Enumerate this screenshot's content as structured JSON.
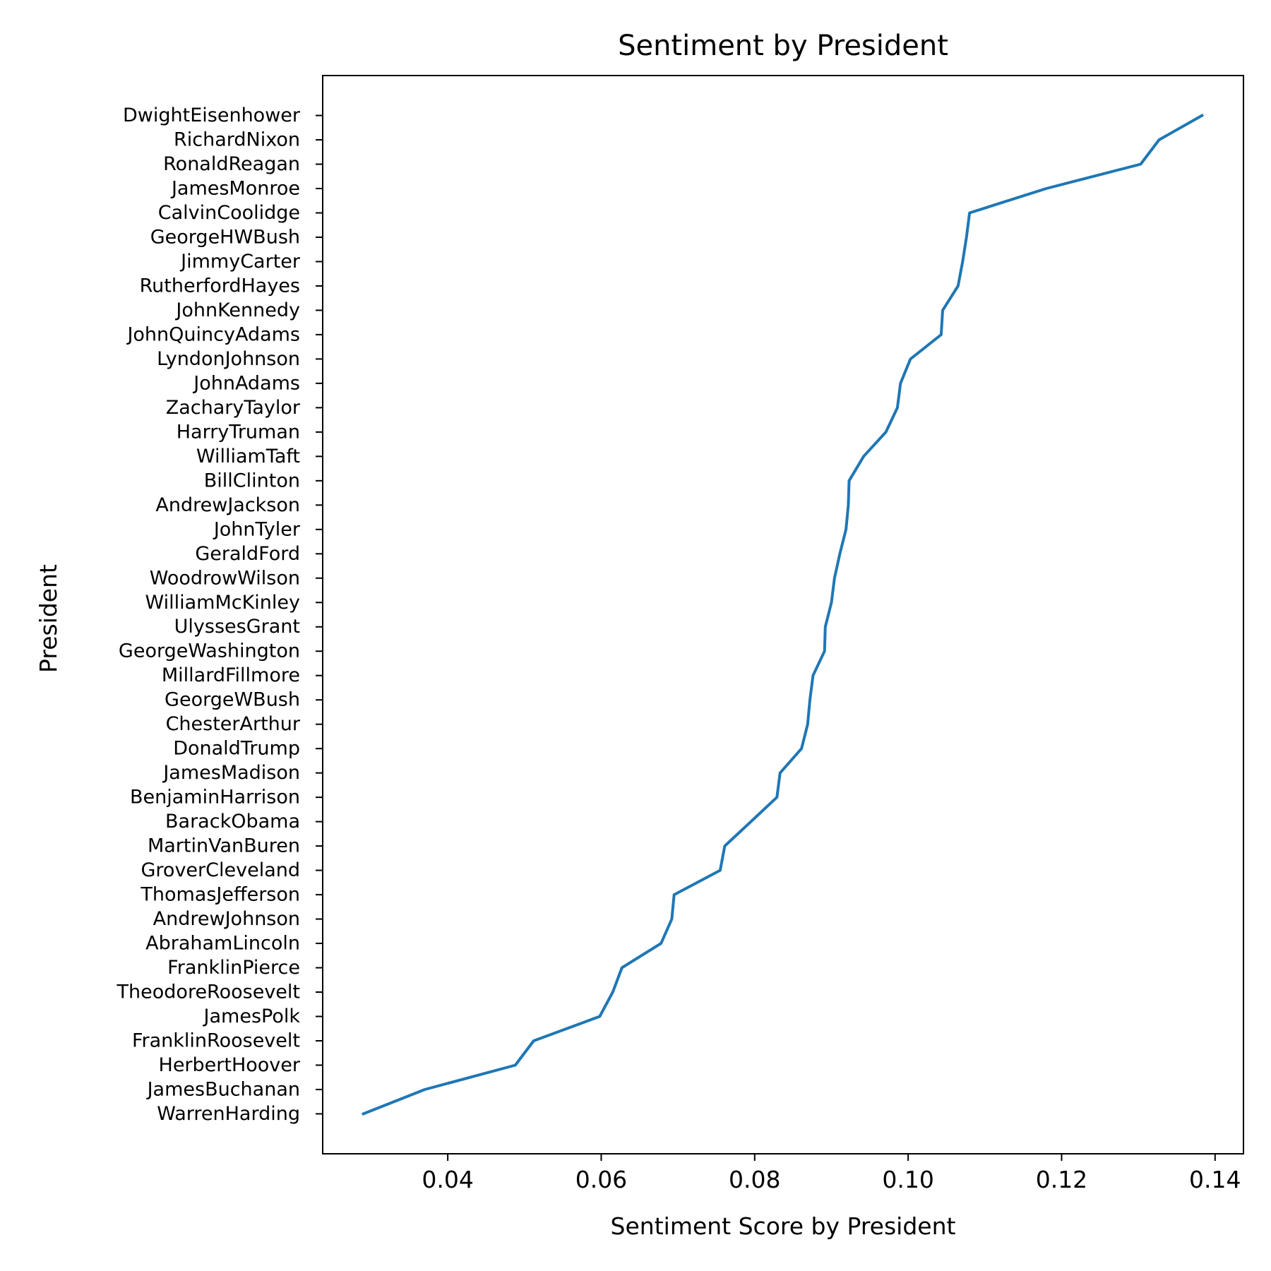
{
  "chart_data": {
    "type": "line",
    "title": "Sentiment by President",
    "xlabel": "Sentiment Score by President",
    "ylabel": "President",
    "xlim": [
      0.0237,
      0.1437
    ],
    "xticks": [
      0.04,
      0.06,
      0.08,
      0.1,
      0.12,
      0.14
    ],
    "xtick_labels": [
      "0.04",
      "0.06",
      "0.08",
      "0.10",
      "0.12",
      "0.14"
    ],
    "grid": false,
    "legend": "none",
    "colors": {
      "line": "#1f77b4",
      "axes": "#000000",
      "background": "#ffffff"
    },
    "categories": [
      "WarrenHarding",
      "JamesBuchanan",
      "HerbertHoover",
      "FranklinRoosevelt",
      "JamesPolk",
      "TheodoreRoosevelt",
      "FranklinPierce",
      "AbrahamLincoln",
      "AndrewJohnson",
      "ThomasJefferson",
      "GroverCleveland",
      "MartinVanBuren",
      "BarackObama",
      "BenjaminHarrison",
      "JamesMadison",
      "DonaldTrump",
      "ChesterArthur",
      "GeorgeWBush",
      "MillardFillmore",
      "GeorgeWashington",
      "UlyssesGrant",
      "WilliamMcKinley",
      "WoodrowWilson",
      "GeraldFord",
      "JohnTyler",
      "AndrewJackson",
      "BillClinton",
      "WilliamTaft",
      "HarryTruman",
      "ZacharyTaylor",
      "JohnAdams",
      "LyndonJohnson",
      "JohnQuincyAdams",
      "JohnKennedy",
      "RutherfordHayes",
      "JimmyCarter",
      "GeorgeHWBush",
      "CalvinCoolidge",
      "JamesMonroe",
      "RonaldReagan",
      "RichardNixon",
      "DwightEisenhower"
    ],
    "series": [
      {
        "values": [
          0.029,
          0.037,
          0.0488,
          0.0512,
          0.0598,
          0.0615,
          0.0627,
          0.0678,
          0.0692,
          0.0695,
          0.0755,
          0.0761,
          0.0795,
          0.0829,
          0.0833,
          0.0861,
          0.0869,
          0.0872,
          0.0876,
          0.0891,
          0.0892,
          0.09,
          0.0904,
          0.0911,
          0.0919,
          0.0922,
          0.0923,
          0.0942,
          0.0971,
          0.0986,
          0.099,
          0.1003,
          0.1043,
          0.1045,
          0.1065,
          0.1071,
          0.1076,
          0.108,
          0.118,
          0.1303,
          0.1327,
          0.1383
        ]
      }
    ]
  }
}
